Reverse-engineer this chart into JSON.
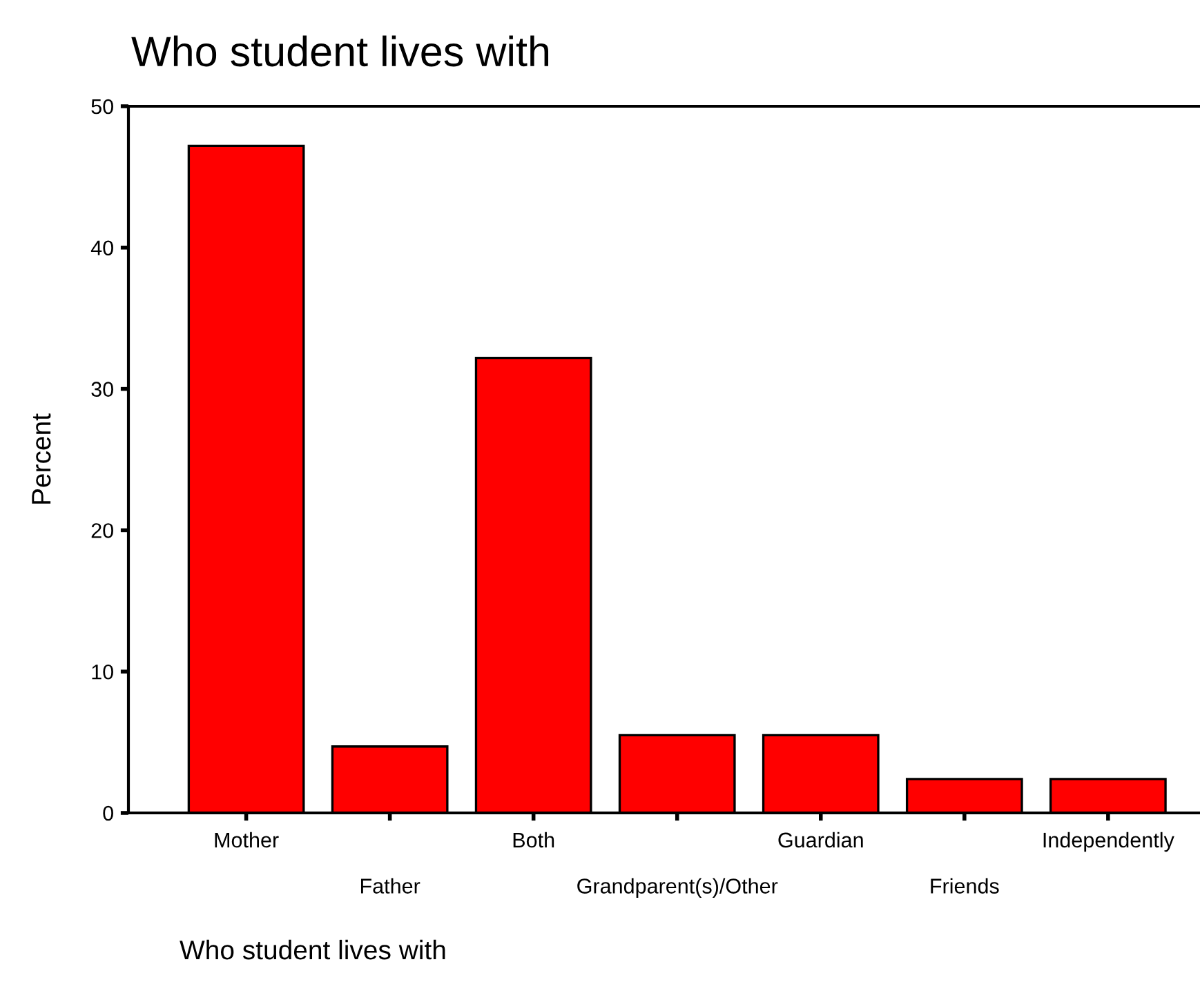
{
  "chart_data": {
    "type": "bar",
    "title": "Who student lives with",
    "xlabel": "Who student lives with",
    "ylabel": "Percent",
    "categories": [
      "Mother",
      "Father",
      "Both",
      "Grandparent(s)/Other",
      "Guardian",
      "Friends",
      "Independently"
    ],
    "values": [
      47.2,
      4.7,
      32.2,
      5.5,
      5.5,
      2.4,
      2.4
    ],
    "color": "#ff0000",
    "ylim": [
      0,
      50
    ],
    "yticks": [
      0,
      10,
      20,
      30,
      40,
      50
    ],
    "grid": false,
    "legend": false
  }
}
